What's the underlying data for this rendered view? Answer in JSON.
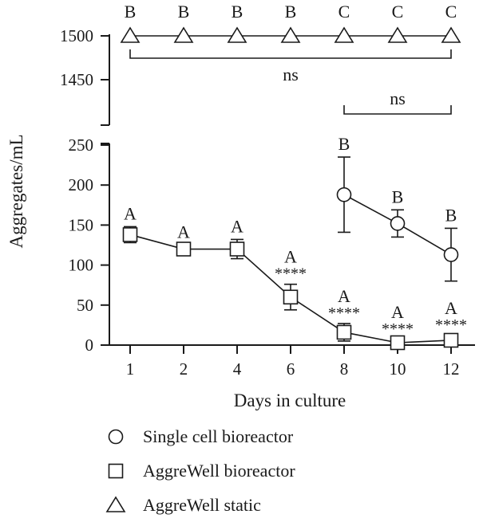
{
  "chart_data": {
    "type": "line",
    "xlabel": "Days in culture",
    "ylabel": "Aggregates/mL",
    "x": [
      "1",
      "2",
      "4",
      "6",
      "8",
      "10",
      "12"
    ],
    "y_axis_break": true,
    "y_lower_ticks": [
      "0",
      "50",
      "100",
      "150",
      "200",
      "250"
    ],
    "y_upper_ticks": [
      "1450",
      "1500"
    ],
    "ylim_lower": [
      0,
      250
    ],
    "ylim_upper": [
      1450,
      1500
    ],
    "grid": false,
    "legend_position": "bottom-left",
    "series": [
      {
        "name": "Single cell bioreactor",
        "marker": "circle",
        "x": [
          "8",
          "10",
          "12"
        ],
        "values": [
          188,
          152,
          113
        ],
        "err": [
          47,
          17,
          33
        ],
        "letters": [
          "B",
          "B",
          "B"
        ],
        "stars": [
          "",
          "",
          ""
        ]
      },
      {
        "name": "AggreWell bioreactor",
        "marker": "square",
        "x": [
          "1",
          "2",
          "4",
          "6",
          "8",
          "10",
          "12"
        ],
        "values": [
          138,
          120,
          120,
          60,
          16,
          3,
          6
        ],
        "err": [
          10,
          5,
          12,
          16,
          11,
          4,
          6
        ],
        "letters": [
          "A",
          "A",
          "A",
          "A",
          "A",
          "A",
          "A"
        ],
        "stars": [
          "",
          "",
          "",
          "****",
          "****",
          "****",
          "****"
        ]
      },
      {
        "name": "AggreWell static",
        "marker": "triangle",
        "x": [
          "1",
          "2",
          "4",
          "6",
          "8",
          "10",
          "12"
        ],
        "values": [
          1500,
          1500,
          1500,
          1500,
          1500,
          1500,
          1500
        ],
        "err": [
          0,
          0,
          0,
          0,
          0,
          0,
          0
        ],
        "letters": [
          "B",
          "B",
          "B",
          "B",
          "C",
          "C",
          "C"
        ],
        "stars": [
          "",
          "",
          "",
          "",
          "",
          "",
          ""
        ]
      }
    ],
    "comparisons": [
      {
        "label": "ns",
        "from": "1",
        "to": "12",
        "axis": "upper"
      },
      {
        "label": "ns",
        "from": "8",
        "to": "12",
        "axis": "upper"
      }
    ]
  }
}
